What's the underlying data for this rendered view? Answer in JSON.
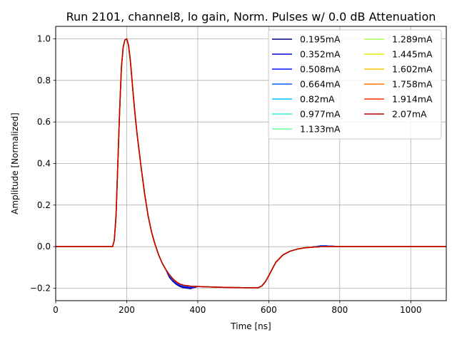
{
  "chart_data": {
    "type": "line",
    "title": "Run 2101, channel8, lo gain, Norm. Pulses w/ 0.0 dB Attenuation",
    "xlabel": "Time [ns]",
    "ylabel": "Amplitude [Normalized]",
    "xlim": [
      0,
      1100
    ],
    "ylim": [
      -0.26,
      1.06
    ],
    "xticks": [
      0,
      200,
      400,
      600,
      800,
      1000
    ],
    "yticks": [
      -0.2,
      0.0,
      0.2,
      0.4,
      0.6,
      0.8,
      1.0
    ],
    "xtick_labels": [
      "0",
      "200",
      "400",
      "600",
      "800",
      "1000"
    ],
    "ytick_labels": [
      "−0.2",
      "0.0",
      "0.2",
      "0.4",
      "0.6",
      "0.8",
      "1.0"
    ],
    "grid": true,
    "legend_position": "top-right",
    "legend_columns": 2,
    "waveform": {
      "x": [
        0,
        160,
        165,
        170,
        175,
        180,
        185,
        190,
        195,
        200,
        205,
        210,
        215,
        220,
        225,
        230,
        240,
        250,
        260,
        270,
        280,
        290,
        300,
        310,
        320,
        330,
        340,
        350,
        360,
        380,
        400,
        450,
        500,
        550,
        570,
        580,
        590,
        600,
        620,
        640,
        660,
        680,
        700,
        720,
        750,
        800,
        900,
        1000,
        1100
      ],
      "y": [
        0.0,
        0.0,
        0.03,
        0.15,
        0.4,
        0.65,
        0.86,
        0.96,
        0.995,
        1.0,
        0.97,
        0.9,
        0.8,
        0.7,
        0.61,
        0.53,
        0.39,
        0.26,
        0.15,
        0.07,
        0.01,
        -0.04,
        -0.08,
        -0.11,
        -0.135,
        -0.155,
        -0.17,
        -0.18,
        -0.186,
        -0.19,
        -0.192,
        -0.195,
        -0.197,
        -0.198,
        -0.198,
        -0.19,
        -0.17,
        -0.14,
        -0.075,
        -0.04,
        -0.022,
        -0.012,
        -0.006,
        -0.003,
        0.0,
        0.0,
        0.0,
        0.0,
        0.0
      ]
    },
    "series": [
      {
        "name": "0.195mA",
        "color": "#000080"
      },
      {
        "name": "0.352mA",
        "color": "#0000d0"
      },
      {
        "name": "0.508mA",
        "color": "#0010ff"
      },
      {
        "name": "0.664mA",
        "color": "#0060ff"
      },
      {
        "name": "0.82mA",
        "color": "#00c0ff"
      },
      {
        "name": "0.977mA",
        "color": "#30f0d0"
      },
      {
        "name": "1.133mA",
        "color": "#70ffa0"
      },
      {
        "name": "1.289mA",
        "color": "#a8ff50"
      },
      {
        "name": "1.445mA",
        "color": "#e0f000"
      },
      {
        "name": "1.602mA",
        "color": "#ffc000"
      },
      {
        "name": "1.758mA",
        "color": "#ff7000"
      },
      {
        "name": "1.914mA",
        "color": "#ff2a00"
      },
      {
        "name": "2.07mA",
        "color": "#c00000"
      }
    ]
  }
}
